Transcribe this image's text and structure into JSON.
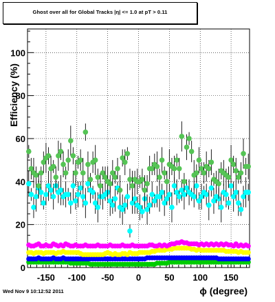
{
  "header": {
    "title": "Ghost over all for Global Tracks |η| <= 1.0 at pT > 0.11",
    "timestamp": "Wed Nov  9 10:12:52 2011"
  },
  "chart_data": {
    "type": "scatter",
    "title": "Ghost over all for Global Tracks |η| <= 1.0 at pT > 0.11",
    "xlabel": "ϕ (degree)",
    "ylabel": "Efficiency (%)",
    "xlim": [
      -180,
      180
    ],
    "ylim": [
      0,
      111
    ],
    "x_ticks": [
      -150,
      -100,
      -50,
      0,
      50,
      100,
      150
    ],
    "y_ticks": [
      20,
      40,
      60,
      80,
      100
    ],
    "grid": true,
    "series": [
      {
        "color": "#55c455",
        "x": [
          -178,
          -174,
          -170,
          -166,
          -162,
          -158,
          -154,
          -150,
          -146,
          -142,
          -138,
          -134,
          -130,
          -126,
          -122,
          -118,
          -114,
          -110,
          -106,
          -102,
          -98,
          -94,
          -90,
          -86,
          -82,
          -78,
          -74,
          -70,
          -66,
          -62,
          -58,
          -54,
          -50,
          -46,
          -42,
          -38,
          -34,
          -30,
          -26,
          -22,
          -18,
          -14,
          -10,
          -6,
          -2,
          2,
          6,
          10,
          14,
          18,
          22,
          26,
          30,
          34,
          38,
          42,
          46,
          50,
          54,
          58,
          62,
          66,
          70,
          74,
          78,
          82,
          86,
          90,
          94,
          98,
          102,
          106,
          110,
          114,
          118,
          122,
          126,
          130,
          134,
          138,
          142,
          146,
          150,
          154,
          158,
          162,
          166,
          170,
          174,
          178
        ],
        "values": [
          54,
          46,
          44,
          43,
          38,
          44,
          49,
          51,
          52,
          46,
          47,
          42,
          52,
          54,
          48,
          44,
          50,
          59,
          52,
          44,
          49,
          50,
          44,
          63,
          48,
          41,
          49,
          50,
          42,
          38,
          44,
          42,
          40,
          39,
          44,
          42,
          46,
          36,
          51,
          49,
          53,
          41,
          38,
          41,
          40,
          40,
          41,
          36,
          39,
          46,
          46,
          48,
          47,
          42,
          50,
          44,
          40,
          48,
          47,
          46,
          50,
          46,
          61,
          40,
          56,
          60,
          54,
          43,
          44,
          50,
          46,
          44,
          47,
          46,
          49,
          41,
          40,
          39,
          45,
          44,
          43,
          42,
          50,
          48,
          45,
          42,
          44,
          53,
          47,
          47
        ]
      },
      {
        "color": "#00ffff",
        "x": [
          -178,
          -174,
          -170,
          -166,
          -162,
          -158,
          -154,
          -150,
          -146,
          -142,
          -138,
          -134,
          -130,
          -126,
          -122,
          -118,
          -114,
          -110,
          -106,
          -102,
          -98,
          -94,
          -90,
          -86,
          -82,
          -78,
          -74,
          -70,
          -66,
          -62,
          -58,
          -54,
          -50,
          -46,
          -42,
          -38,
          -34,
          -30,
          -26,
          -22,
          -18,
          -14,
          -10,
          -6,
          -2,
          2,
          6,
          10,
          14,
          18,
          22,
          26,
          30,
          34,
          38,
          42,
          46,
          50,
          54,
          58,
          62,
          66,
          70,
          74,
          78,
          82,
          86,
          90,
          94,
          98,
          102,
          106,
          110,
          114,
          118,
          122,
          126,
          130,
          134,
          138,
          142,
          146,
          150,
          154,
          158,
          162,
          166,
          170,
          174,
          178
        ],
        "values": [
          39,
          34,
          28,
          33,
          37,
          35,
          30,
          34,
          38,
          36,
          33,
          38,
          35,
          36,
          33,
          34,
          34,
          30,
          38,
          31,
          34,
          37,
          33,
          30,
          39,
          36,
          35,
          30,
          28,
          33,
          33,
          34,
          35,
          31,
          29,
          32,
          37,
          28,
          27,
          29,
          33,
          17,
          30,
          32,
          29,
          28,
          26,
          32,
          27,
          29,
          34,
          31,
          33,
          33,
          35,
          30,
          32,
          34,
          28,
          38,
          35,
          33,
          36,
          34,
          37,
          35,
          34,
          33,
          38,
          31,
          33,
          35,
          34,
          29,
          37,
          31,
          33,
          32,
          28,
          35,
          34,
          30,
          38,
          33,
          35,
          30,
          27,
          33,
          35,
          35
        ]
      },
      {
        "color": "#ff00ff",
        "x": [
          -178,
          -174,
          -170,
          -166,
          -162,
          -158,
          -154,
          -150,
          -146,
          -142,
          -138,
          -134,
          -130,
          -126,
          -122,
          -118,
          -114,
          -110,
          -106,
          -102,
          -98,
          -94,
          -90,
          -86,
          -82,
          -78,
          -74,
          -70,
          -66,
          -62,
          -58,
          -54,
          -50,
          -46,
          -42,
          -38,
          -34,
          -30,
          -26,
          -22,
          -18,
          -14,
          -10,
          -6,
          -2,
          2,
          6,
          10,
          14,
          18,
          22,
          26,
          30,
          34,
          38,
          42,
          46,
          50,
          54,
          58,
          62,
          66,
          70,
          74,
          78,
          82,
          86,
          90,
          94,
          98,
          102,
          106,
          110,
          114,
          118,
          122,
          126,
          130,
          134,
          138,
          142,
          146,
          150,
          154,
          158,
          162,
          166,
          170,
          174,
          178
        ],
        "values": [
          10.5,
          10,
          10,
          10.5,
          11,
          10,
          10,
          10.5,
          10,
          10,
          11,
          10.5,
          10,
          10.5,
          10,
          11,
          10.5,
          10,
          10,
          10.5,
          10,
          10,
          10,
          10.5,
          10,
          10,
          10,
          10,
          10.5,
          10,
          10,
          10,
          10,
          10.5,
          10,
          10,
          10,
          10,
          10.5,
          10,
          10,
          10,
          10.5,
          10,
          10,
          10,
          10,
          10,
          10,
          10.5,
          10.5,
          10,
          10,
          10.5,
          10,
          10.5,
          10,
          10.5,
          11,
          11,
          11.5,
          11.5,
          12,
          11.5,
          11.5,
          11,
          11,
          11,
          11,
          10.5,
          11,
          10.5,
          11,
          10.5,
          11,
          10.5,
          11,
          10.5,
          11,
          10.5,
          11,
          10.5,
          10.5,
          10,
          11,
          10,
          10.5,
          10,
          10.5,
          10
        ]
      },
      {
        "color": "#ffff00",
        "x": [
          -178,
          -174,
          -170,
          -166,
          -162,
          -158,
          -154,
          -150,
          -146,
          -142,
          -138,
          -134,
          -130,
          -126,
          -122,
          -118,
          -114,
          -110,
          -106,
          -102,
          -98,
          -94,
          -90,
          -86,
          -82,
          -78,
          -74,
          -70,
          -66,
          -62,
          -58,
          -54,
          -50,
          -46,
          -42,
          -38,
          -34,
          -30,
          -26,
          -22,
          -18,
          -14,
          -10,
          -6,
          -2,
          2,
          6,
          10,
          14,
          18,
          22,
          26,
          30,
          34,
          38,
          42,
          46,
          50,
          54,
          58,
          62,
          66,
          70,
          74,
          78,
          82,
          86,
          90,
          94,
          98,
          102,
          106,
          110,
          114,
          118,
          122,
          126,
          130,
          134,
          138,
          142,
          146,
          150,
          154,
          158,
          162,
          166,
          170,
          174,
          178
        ],
        "values": [
          7,
          7,
          6.5,
          7,
          7,
          7,
          6.5,
          7,
          7,
          7,
          7,
          6.5,
          7,
          7,
          7.5,
          7,
          7,
          7,
          7,
          7,
          7,
          6.5,
          6,
          6,
          6,
          6,
          6,
          6,
          6,
          6,
          6,
          6.5,
          7,
          6.5,
          6,
          6.5,
          6,
          6,
          6.5,
          6.5,
          6,
          7,
          6.5,
          6.5,
          6.5,
          7,
          7,
          7,
          7,
          7,
          7.5,
          7.5,
          8,
          8,
          8,
          8,
          8.5,
          8.5,
          8.5,
          9,
          9,
          9,
          9,
          9,
          9,
          9,
          8.5,
          8.5,
          8,
          8.5,
          8,
          8,
          8,
          8,
          8,
          8,
          8,
          8,
          8,
          8,
          7.5,
          7.5,
          7.5,
          7.5,
          7.5,
          7,
          7.5,
          7,
          7,
          7
        ]
      },
      {
        "color": "#0000ff",
        "x": [
          -178,
          -174,
          -170,
          -166,
          -162,
          -158,
          -154,
          -150,
          -146,
          -142,
          -138,
          -134,
          -130,
          -126,
          -122,
          -118,
          -114,
          -110,
          -106,
          -102,
          -98,
          -94,
          -90,
          -86,
          -82,
          -78,
          -74,
          -70,
          -66,
          -62,
          -58,
          -54,
          -50,
          -46,
          -42,
          -38,
          -34,
          -30,
          -26,
          -22,
          -18,
          -14,
          -10,
          -6,
          -2,
          2,
          6,
          10,
          14,
          18,
          22,
          26,
          30,
          34,
          38,
          42,
          46,
          50,
          54,
          58,
          62,
          66,
          70,
          74,
          78,
          82,
          86,
          90,
          94,
          98,
          102,
          106,
          110,
          114,
          118,
          122,
          126,
          130,
          134,
          138,
          142,
          146,
          150,
          154,
          158,
          162,
          166,
          170,
          174,
          178
        ],
        "values": [
          4,
          4,
          4,
          4,
          4.5,
          4,
          4,
          4,
          4,
          4,
          4.5,
          4,
          4,
          4,
          4.5,
          4,
          4,
          4,
          4,
          4,
          4,
          4,
          4,
          4,
          4,
          4,
          4,
          4,
          4,
          4,
          4,
          4,
          4,
          4,
          4,
          4,
          4,
          4,
          4,
          4,
          4,
          4,
          4,
          4,
          4,
          4,
          4,
          4,
          4.5,
          4.5,
          4.5,
          4.5,
          4.5,
          4.5,
          4.5,
          4.5,
          4.5,
          4.5,
          4.5,
          4.5,
          4.5,
          4.5,
          4.5,
          4.5,
          4.5,
          4.5,
          4.5,
          4.5,
          4.5,
          4.5,
          4.5,
          4.5,
          4.5,
          4.5,
          4.5,
          4.5,
          4.5,
          4,
          4,
          4,
          4,
          4,
          4,
          4,
          4,
          4,
          4,
          4,
          4,
          4
        ]
      },
      {
        "color": "#00cc00",
        "x": [
          -178,
          -174,
          -170,
          -166,
          -162,
          -158,
          -154,
          -150,
          -146,
          -142,
          -138,
          -134,
          -130,
          -126,
          -122,
          -118,
          -114,
          -110,
          -106,
          -102,
          -98,
          -94,
          -90,
          -86,
          -82,
          -78,
          -74,
          -70,
          -66,
          -62,
          -58,
          -54,
          -50,
          -46,
          -42,
          -38,
          -34,
          -30,
          -26,
          -22,
          -18,
          -14,
          -10,
          -6,
          -2,
          2,
          6,
          10,
          14,
          18,
          22,
          26,
          30,
          34,
          38,
          42,
          46,
          50,
          54,
          58,
          62,
          66,
          70,
          74,
          78,
          82,
          86,
          90,
          94,
          98,
          102,
          106,
          110,
          114,
          118,
          122,
          126,
          130,
          134,
          138,
          142,
          146,
          150,
          154,
          158,
          162,
          166,
          170,
          174,
          178
        ],
        "values": [
          2.5,
          2.5,
          2.5,
          2.5,
          2.5,
          2.5,
          2.5,
          2.5,
          2.5,
          2.5,
          2.5,
          2.5,
          2.5,
          2.5,
          2.5,
          2.5,
          2.5,
          2,
          2,
          2,
          2,
          2,
          2,
          2,
          2,
          1.5,
          1.5,
          1.5,
          1.5,
          1.5,
          1.5,
          1.5,
          1.5,
          1.5,
          1.5,
          1.5,
          1.5,
          1.5,
          1.5,
          1.5,
          1.5,
          1.5,
          1.5,
          1.5,
          1.5,
          1.5,
          1.5,
          1.5,
          1.5,
          1.5,
          1.5,
          1.5,
          2,
          2,
          2,
          2,
          2,
          2.5,
          2.5,
          2.5,
          2.5,
          2.5,
          2.5,
          2.5,
          2.5,
          2.5,
          2.5,
          2.5,
          2.5,
          2.5,
          2.5,
          2.5,
          2.5,
          2.5,
          2.5,
          2.5,
          2.5,
          2.5,
          2.5,
          2.5,
          2.5,
          2.5,
          2.5,
          2.5,
          2.5,
          2.5,
          2.5,
          2.5,
          2.5,
          2.5
        ]
      }
    ]
  }
}
